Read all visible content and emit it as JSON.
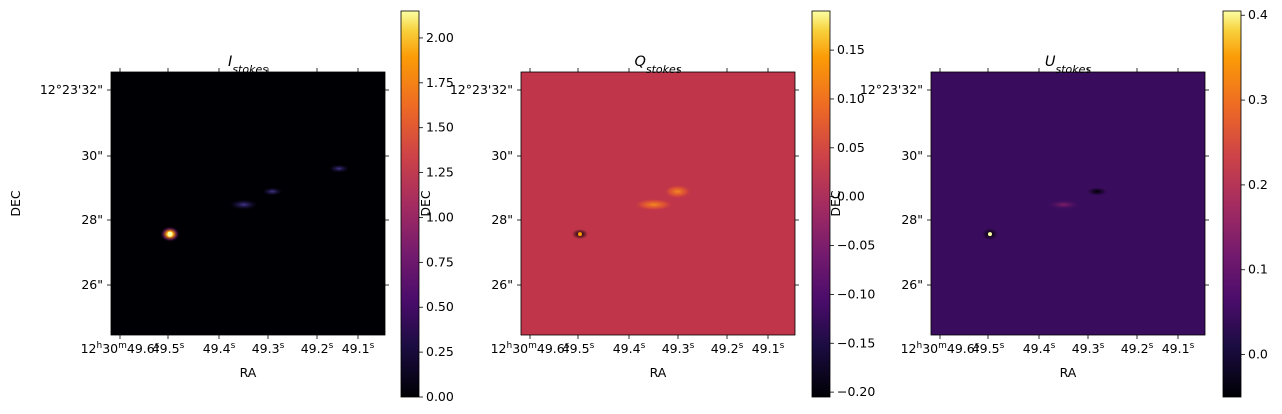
{
  "chart_data": [
    {
      "type": "heatmap",
      "title": "I",
      "title_subscript": "stokes",
      "xlabel": "RA",
      "ylabel": "DEC",
      "colormap": "inferno",
      "background_color": "#000004",
      "x_ticks": [
        {
          "main": "12",
          "sup1": "h",
          "mid": "30",
          "sup2": "m",
          "rest": "49.6",
          "sup3": "s"
        },
        {
          "main": "49.5",
          "sup": "s"
        },
        {
          "main": "49.4",
          "sup": "s"
        },
        {
          "main": "49.3",
          "sup": "s"
        },
        {
          "main": "49.2",
          "sup": "s"
        },
        {
          "main": "49.1",
          "sup": "s"
        }
      ],
      "y_ticks": [
        "12°23'32\"",
        "30\"",
        "28\"",
        "26\""
      ],
      "colorbar": {
        "ticks": [
          "0.00",
          "0.25",
          "0.50",
          "0.75",
          "1.00",
          "1.25",
          "1.50",
          "1.75",
          "2.00"
        ],
        "values": [
          0,
          0.25,
          0.5,
          0.75,
          1.0,
          1.25,
          1.5,
          1.75,
          2.0
        ],
        "vmin": 0,
        "vmax": 2.15
      },
      "features": [
        {
          "name": "bright point source",
          "ra_index": 1.05,
          "dec": 27.6
        },
        {
          "name": "jet knot",
          "ra_index": 2.6,
          "dec": 28.5
        },
        {
          "name": "faint knot",
          "ra_index": 3.2,
          "dec": 28.9
        },
        {
          "name": "faint knot",
          "ra_index": 4.6,
          "dec": 29.6
        }
      ]
    },
    {
      "type": "heatmap",
      "title": "Q",
      "title_subscript": "stokes",
      "xlabel": "RA",
      "ylabel": "DEC",
      "colormap": "inferno",
      "background_color": "#c03549",
      "x_ticks": [
        {
          "main": "12",
          "sup1": "h",
          "mid": "30",
          "sup2": "m",
          "rest": "49.6",
          "sup3": "s"
        },
        {
          "main": "49.5",
          "sup": "s"
        },
        {
          "main": "49.4",
          "sup": "s"
        },
        {
          "main": "49.3",
          "sup": "s"
        },
        {
          "main": "49.2",
          "sup": "s"
        },
        {
          "main": "49.1",
          "sup": "s"
        }
      ],
      "y_ticks": [
        "12°23'32\"",
        "30\"",
        "28\"",
        "26\""
      ],
      "colorbar": {
        "ticks": [
          "0.15",
          "0.10",
          "0.05",
          "0.00",
          "−0.05",
          "−0.10",
          "−0.15",
          "−0.20"
        ],
        "values": [
          0.15,
          0.1,
          0.05,
          0.0,
          -0.05,
          -0.1,
          -0.15,
          -0.2
        ],
        "vmin": -0.205,
        "vmax": 0.19
      },
      "features": [
        {
          "name": "point source residual",
          "ra_index": 1.05,
          "dec": 27.6
        },
        {
          "name": "jet knot",
          "ra_index": 2.6,
          "dec": 28.5
        },
        {
          "name": "jet knot",
          "ra_index": 3.1,
          "dec": 28.9
        }
      ]
    },
    {
      "type": "heatmap",
      "title": "U",
      "title_subscript": "stokes",
      "xlabel": "RA",
      "ylabel": "DEC",
      "colormap": "inferno",
      "background_color": "#3a0c5e",
      "x_ticks": [
        {
          "main": "12",
          "sup1": "h",
          "mid": "30",
          "sup2": "m",
          "rest": "49.6",
          "sup3": "s"
        },
        {
          "main": "49.5",
          "sup": "s"
        },
        {
          "main": "49.4",
          "sup": "s"
        },
        {
          "main": "49.3",
          "sup": "s"
        },
        {
          "main": "49.2",
          "sup": "s"
        },
        {
          "main": "49.1",
          "sup": "s"
        }
      ],
      "y_ticks": [
        "12°23'32\"",
        "30\"",
        "28\"",
        "26\""
      ],
      "colorbar": {
        "ticks": [
          "0.4",
          "0.3",
          "0.2",
          "0.1",
          "0.0"
        ],
        "values": [
          0.4,
          0.3,
          0.2,
          0.1,
          0.0
        ],
        "vmin": -0.05,
        "vmax": 0.405
      },
      "features": [
        {
          "name": "point source residual",
          "ra_index": 1.05,
          "dec": 27.6
        },
        {
          "name": "jet knot",
          "ra_index": 2.6,
          "dec": 28.5
        },
        {
          "name": "dark knot",
          "ra_index": 3.3,
          "dec": 28.9
        }
      ]
    }
  ]
}
